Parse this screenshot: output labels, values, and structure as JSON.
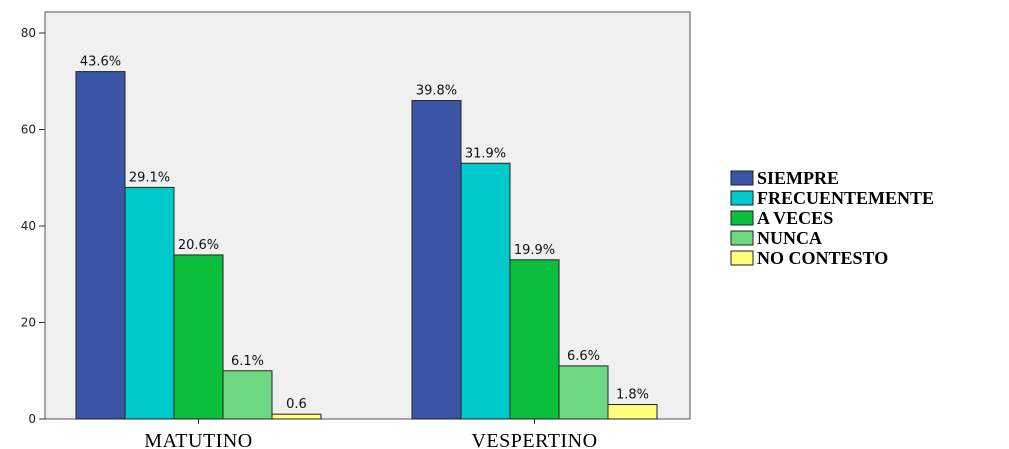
{
  "chart_data": {
    "type": "bar",
    "categories": [
      "MATUTINO",
      "VESPERTINO"
    ],
    "series": [
      {
        "name": "SIEMPRE",
        "color": "#3a55a5",
        "values": [
          72,
          66
        ],
        "labels": [
          "43.6%",
          "39.8%"
        ]
      },
      {
        "name": "FRECUENTEMENTE",
        "color": "#00c9cc",
        "values": [
          48,
          53
        ],
        "labels": [
          "29.1%",
          "31.9%"
        ]
      },
      {
        "name": "A VECES",
        "color": "#0bbe3c",
        "values": [
          34,
          33
        ],
        "labels": [
          "20.6%",
          "19.9%"
        ]
      },
      {
        "name": "NUNCA",
        "color": "#6fd882",
        "values": [
          10,
          11
        ],
        "labels": [
          "6.1%",
          "6.6%"
        ]
      },
      {
        "name": "NO CONTESTO",
        "color": "#ffff7a",
        "values": [
          1,
          3
        ],
        "labels": [
          "0.6",
          "1.8%"
        ]
      }
    ],
    "ylim": [
      0,
      80
    ],
    "yticks": [
      "0",
      "20",
      "40",
      "60",
      "80"
    ],
    "title": "",
    "xlabel": "",
    "ylabel": "",
    "grid": false,
    "legend_position": "right",
    "plot_background": "#f0f0f0"
  }
}
